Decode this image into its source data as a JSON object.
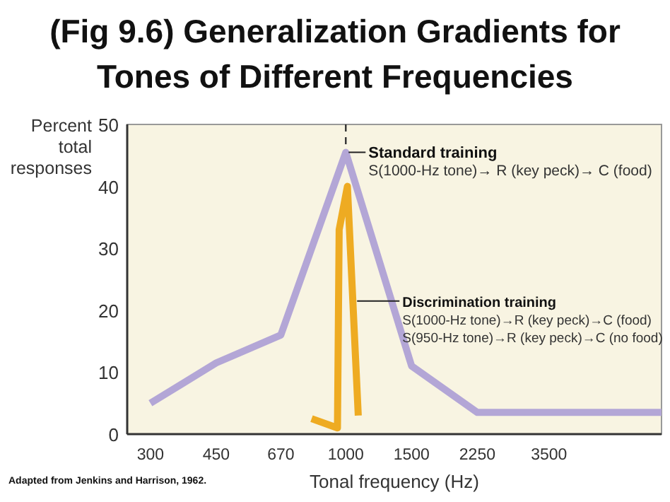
{
  "chart_data": {
    "type": "line",
    "title": "(Fig 9.6) Generalization Gradients for Tones of Different Frequencies",
    "xlabel": "Tonal frequency (Hz)",
    "ylabel": "Percent total responses",
    "log": "x",
    "xlim": [
      260,
      7000
    ],
    "xticks": [
      300,
      450,
      670,
      1000,
      1500,
      2250,
      3500
    ],
    "ylim": [
      0,
      50
    ],
    "yticks": [
      0,
      10,
      20,
      30,
      40,
      50
    ],
    "grid": false,
    "legend": false,
    "marker": "none",
    "line_style": "solid",
    "series": [
      {
        "name": "Standard training",
        "color": "#b3a6d6",
        "x": [
          300,
          450,
          670,
          1000,
          1500,
          2250,
          7000
        ],
        "values": [
          5,
          11.5,
          16,
          45.5,
          11,
          3.5,
          3.5
        ]
      },
      {
        "name": "Discrimination training",
        "color": "#eeab22",
        "x": [
          810,
          950,
          960,
          1010,
          1080
        ],
        "values": [
          2.5,
          1,
          33,
          40,
          3
        ]
      }
    ],
    "ref_lines": [
      {
        "axis": "x",
        "value": 1000,
        "color": "#333333",
        "line_style": "dashed"
      }
    ],
    "annotations": [
      {
        "text": "S(1000-Hz tone)→ R (key peck)→ C (food)"
      },
      {
        "text": "S(1000-Hz tone)→R (key peck)→C (food)"
      },
      {
        "text": "S(950-Hz tone)→R (key peck)→C (no food)"
      },
      "Adapted from Jenkins and Harrison, 1962."
    ]
  }
}
